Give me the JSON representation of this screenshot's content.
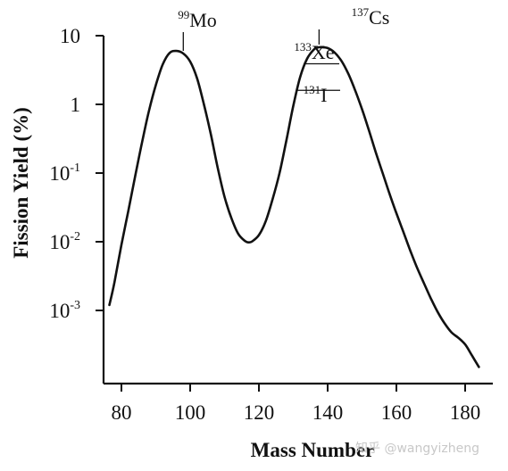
{
  "watermark": "知乎 @wangyizheng",
  "chart_data": {
    "type": "line",
    "title": "",
    "xlabel": "Mass Number",
    "ylabel": "Fission Yield (%)",
    "xlim": [
      76,
      185
    ],
    "ylim": [
      0.00015,
      12
    ],
    "yscale": "log",
    "grid": false,
    "x_ticks": [
      {
        "value": 80,
        "label": "80"
      },
      {
        "value": 100,
        "label": "100"
      },
      {
        "value": 120,
        "label": "120"
      },
      {
        "value": 140,
        "label": "140"
      },
      {
        "value": 160,
        "label": "160"
      },
      {
        "value": 180,
        "label": "180"
      }
    ],
    "y_ticks": [
      {
        "value": 10,
        "base": "10",
        "exp": ""
      },
      {
        "value": 1,
        "base": "1",
        "exp": ""
      },
      {
        "value": 0.1,
        "base": "10",
        "exp": "-1"
      },
      {
        "value": 0.01,
        "base": "10",
        "exp": "-2"
      },
      {
        "value": 0.001,
        "base": "10",
        "exp": "-3"
      }
    ],
    "series": [
      {
        "x": [
          76.5,
          78,
          80,
          82,
          84,
          86,
          88,
          90,
          92,
          94,
          96,
          98,
          100,
          102,
          104,
          106,
          108,
          110,
          112,
          114,
          116,
          117,
          118,
          120,
          122,
          124,
          126,
          128,
          130,
          132,
          134,
          136,
          137,
          138,
          140,
          142,
          144,
          146,
          148,
          150,
          152,
          154,
          156,
          158,
          160,
          162,
          164,
          166,
          168,
          170,
          172,
          174,
          176,
          178,
          180,
          182,
          184
        ],
        "y": [
          0.0012,
          0.0026,
          0.009,
          0.028,
          0.09,
          0.28,
          0.8,
          1.9,
          3.8,
          5.6,
          6.0,
          5.5,
          4.2,
          2.4,
          1.0,
          0.37,
          0.12,
          0.045,
          0.022,
          0.013,
          0.0102,
          0.0098,
          0.0101,
          0.0125,
          0.02,
          0.042,
          0.1,
          0.3,
          0.95,
          2.5,
          4.6,
          6.3,
          6.7,
          6.8,
          6.6,
          5.7,
          4.3,
          2.8,
          1.6,
          0.85,
          0.42,
          0.2,
          0.1,
          0.05,
          0.026,
          0.014,
          0.0075,
          0.0042,
          0.0025,
          0.0015,
          0.00095,
          0.00065,
          0.00048,
          0.0004,
          0.00032,
          0.00022,
          0.00015
        ]
      }
    ],
    "annotations": [
      {
        "mass": "99",
        "element": "Mo",
        "x": 98,
        "y": 5.5
      },
      {
        "mass": "133",
        "element": "Xe",
        "x": 133.5,
        "y": 3.9
      },
      {
        "mass": "131",
        "element": "I",
        "x": 131.5,
        "y": 1.6
      },
      {
        "mass": "137",
        "element": "Cs",
        "x": 137.5,
        "y": 6.8
      }
    ]
  }
}
